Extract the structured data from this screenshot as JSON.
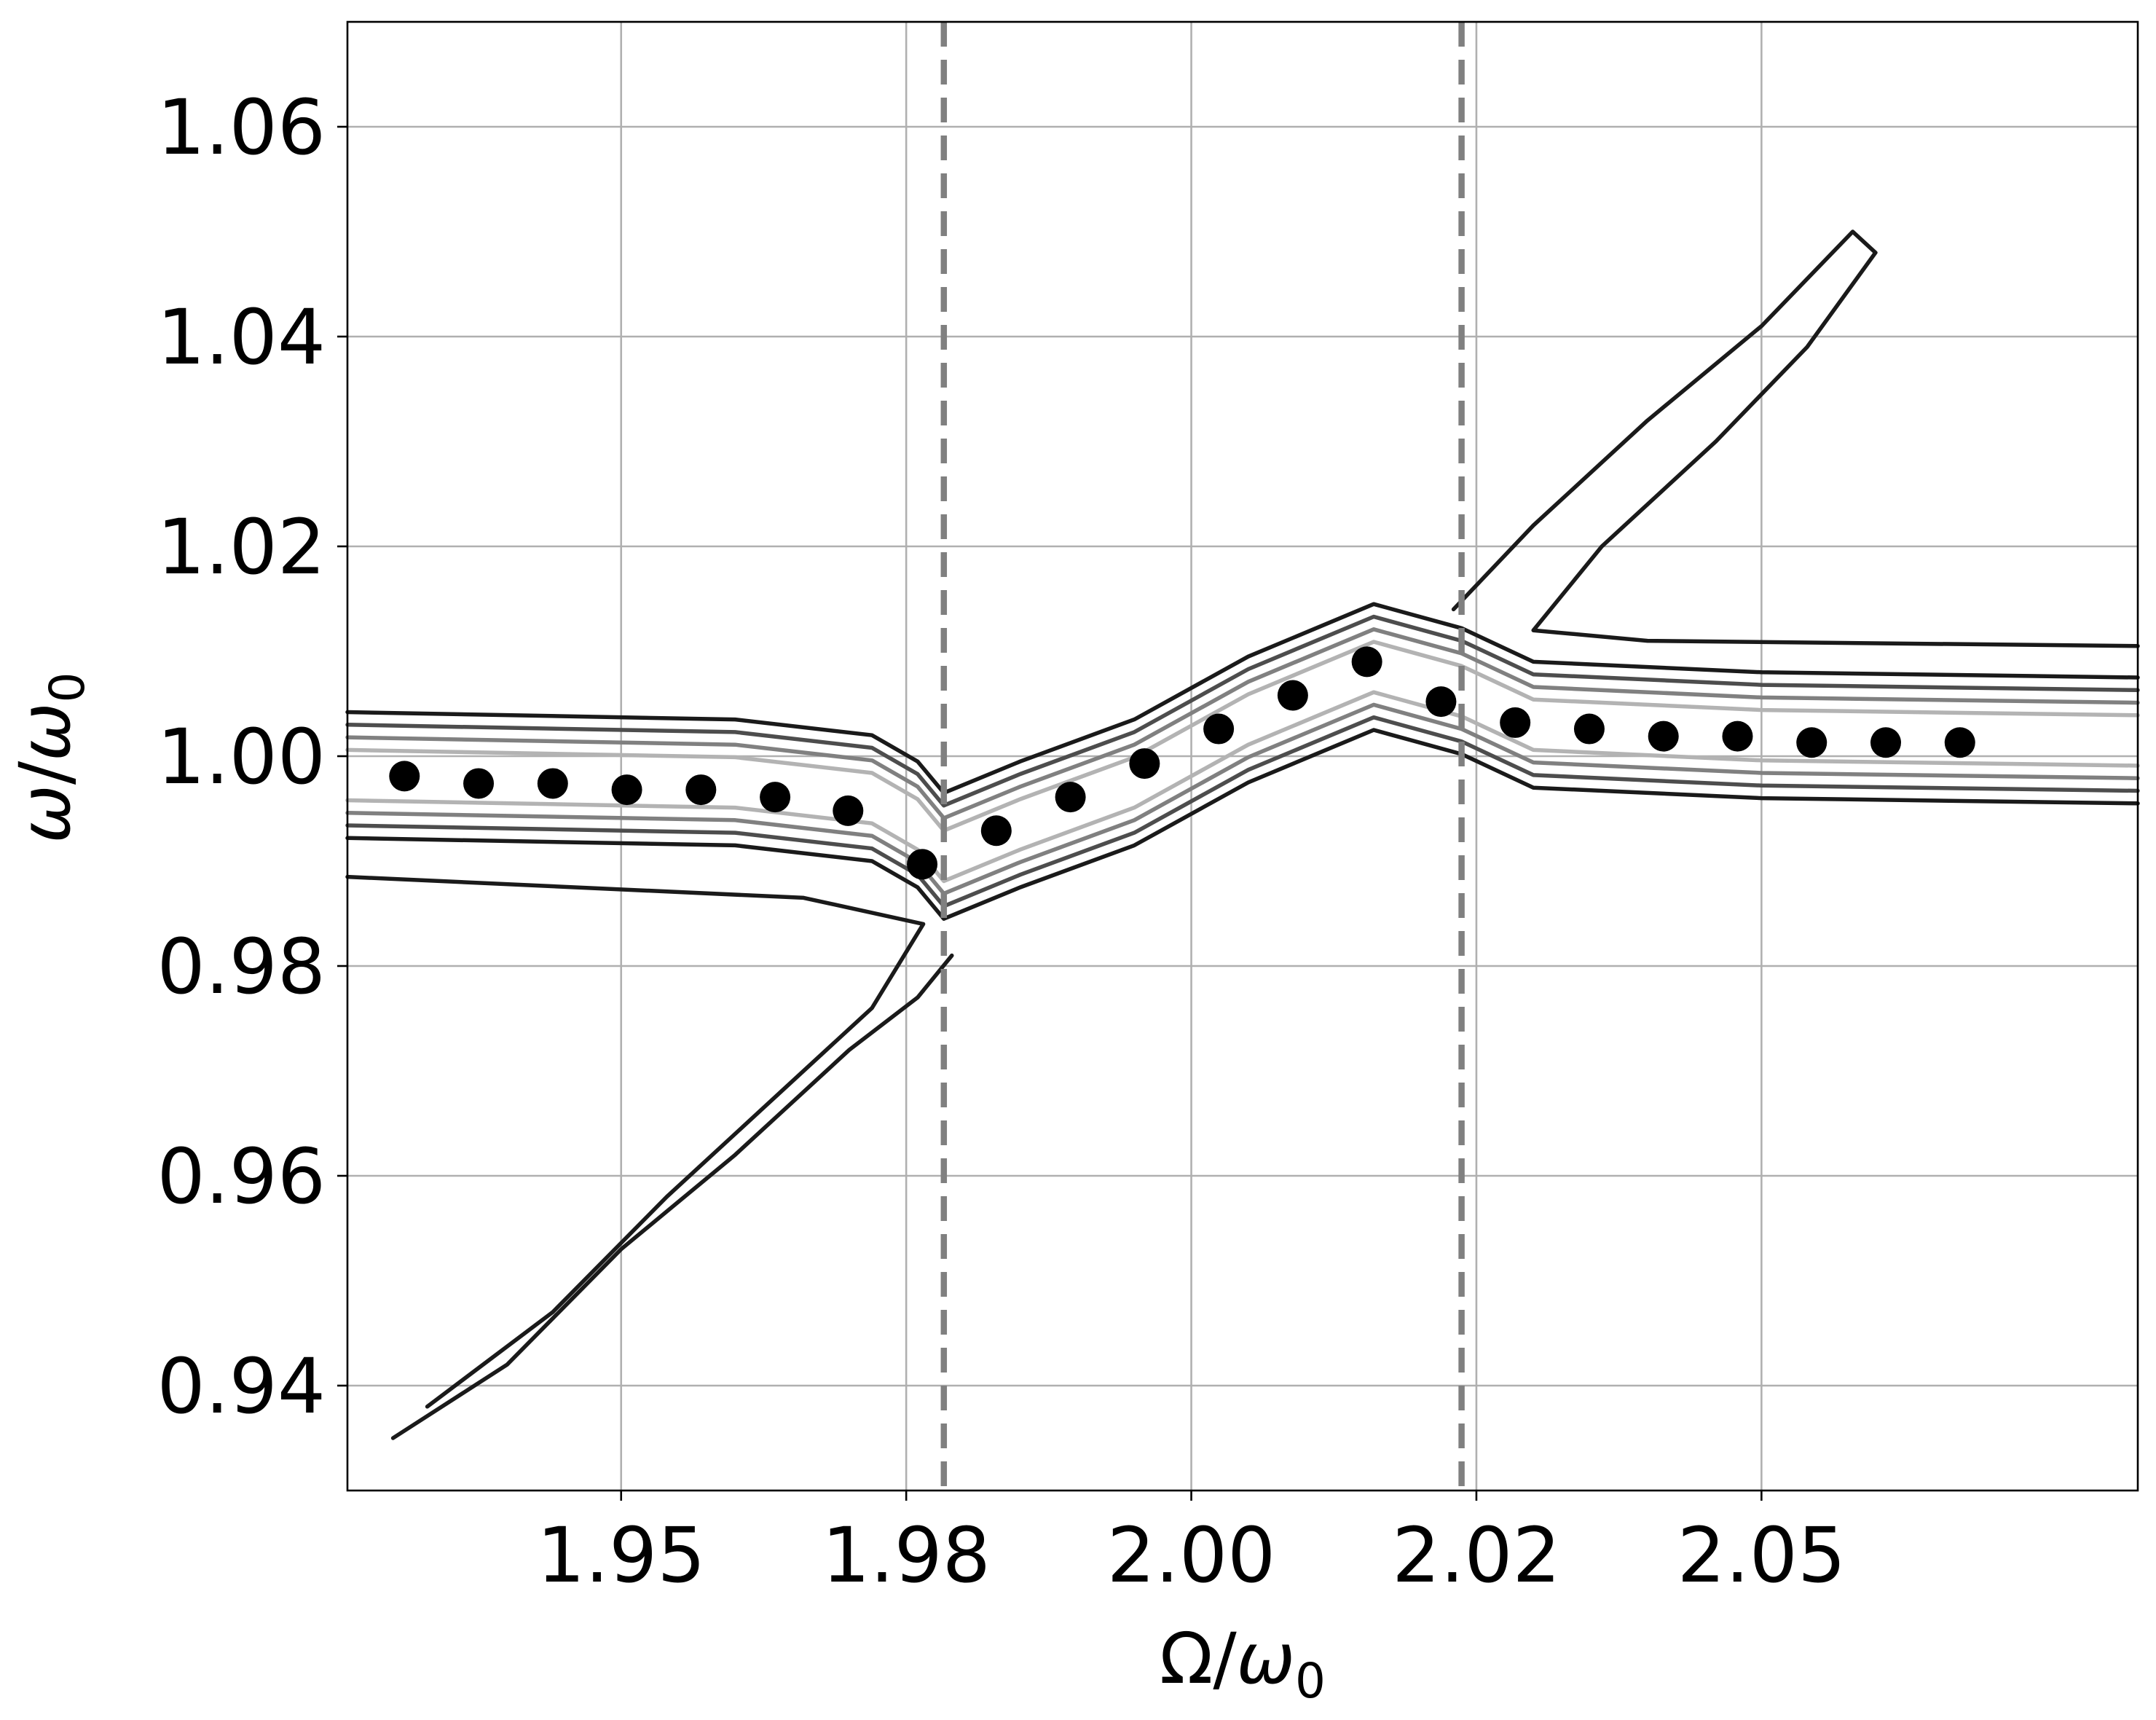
{
  "chart_data": {
    "type": "scatter",
    "xlabel": "Ω/ω₀",
    "ylabel": "ω/ω₀",
    "xlim": [
      1.926,
      2.083
    ],
    "ylim": [
      0.93,
      1.07
    ],
    "xticks": [
      1.95,
      1.975,
      2.0,
      2.025,
      2.05
    ],
    "xtick_labels": [
      "1.95",
      "1.98",
      "2.00",
      "2.02",
      "2.05"
    ],
    "yticks": [
      0.94,
      0.96,
      0.98,
      1.0,
      1.02,
      1.04,
      1.06
    ],
    "ytick_labels": [
      "0.94",
      "0.96",
      "0.98",
      "1.00",
      "1.02",
      "1.04",
      "1.06"
    ],
    "grid": true,
    "series": [
      {
        "marker": "filled-circle",
        "color": "#000000",
        "x": [
          1.931,
          1.9375,
          1.944,
          1.9505,
          1.957,
          1.9635,
          1.9699,
          1.9764,
          1.9829,
          1.9894,
          1.9959,
          2.0024,
          2.0089,
          2.0154,
          2.0219,
          2.0284,
          2.0349,
          2.0414,
          2.0479,
          2.0544,
          2.0609,
          2.0674
        ],
        "y": [
          0.9981,
          0.9974,
          0.9974,
          0.9968,
          0.9968,
          0.9961,
          0.9948,
          0.9897,
          0.9929,
          0.9961,
          0.9993,
          1.0026,
          1.0058,
          1.009,
          1.0052,
          1.0032,
          1.0026,
          1.0019,
          1.0019,
          1.0013,
          1.0013,
          1.0013
        ]
      }
    ],
    "vertical_lines": [
      {
        "x": 1.9783,
        "style": "dashed",
        "color": "#808080"
      },
      {
        "x": 2.0237,
        "style": "dashed",
        "color": "#808080"
      }
    ],
    "contour_colors": [
      "#1a1a1a",
      "#333333",
      "#4d4d4d",
      "#666666",
      "#808080",
      "#9a9a9a",
      "#b3b3b3",
      "#d0d0d0"
    ]
  }
}
